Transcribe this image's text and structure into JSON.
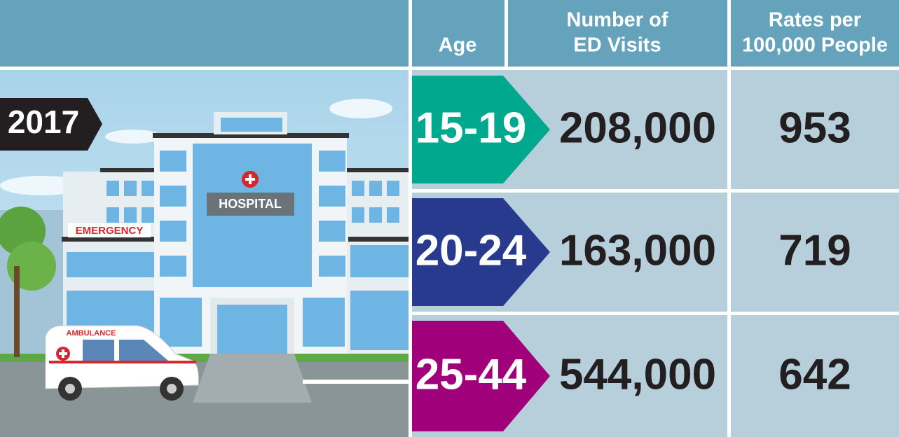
{
  "header": {
    "age": "Age",
    "visits": [
      "Number of",
      "ED Visits"
    ],
    "rates": [
      "Rates per",
      "100,000 People"
    ]
  },
  "year": "2017",
  "illustration": {
    "hospital": "HOSPITAL",
    "emergency": "EMERGENCY",
    "ambulance": "AMBULANCE"
  },
  "table": {
    "rows": [
      [
        "15-19",
        "208,000",
        "953"
      ],
      [
        "20-24",
        "163,000",
        "719"
      ],
      [
        "25-44",
        "544,000",
        "642"
      ]
    ]
  }
}
